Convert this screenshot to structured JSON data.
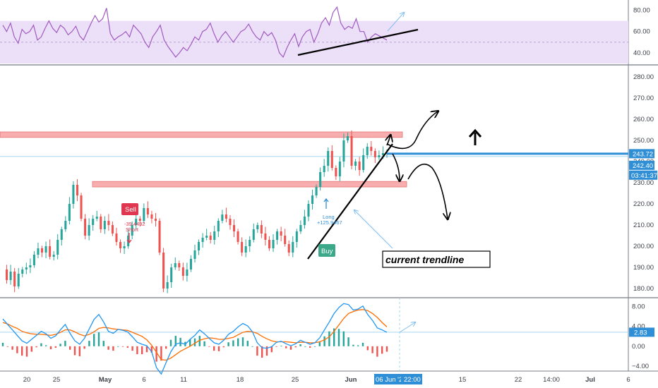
{
  "chart_data": [
    {
      "type": "line",
      "panel": "rsi",
      "ylim": [
        30,
        87
      ],
      "ticks": [
        "80.00",
        "60.00",
        "40.00"
      ],
      "tick_values": [
        80,
        60,
        40
      ],
      "band": [
        30,
        70
      ],
      "midline": 50,
      "colors": {
        "line": "#a05bbf",
        "band": "#ecdff8"
      },
      "values": [
        66,
        60,
        68,
        55,
        49,
        62,
        58,
        60,
        66,
        52,
        55,
        63,
        70,
        63,
        59,
        66,
        63,
        57,
        60,
        65,
        56,
        52,
        60,
        68,
        75,
        69,
        72,
        82,
        58,
        52,
        55,
        57,
        60,
        55,
        66,
        62,
        58,
        50,
        45,
        55,
        60,
        66,
        52,
        46,
        41,
        36,
        40,
        45,
        42,
        48,
        55,
        52,
        60,
        62,
        68,
        58,
        50,
        56,
        60,
        55,
        50,
        55,
        60,
        62,
        67,
        60,
        55,
        52,
        60,
        56,
        59,
        52,
        40,
        36,
        45,
        52,
        58,
        46,
        55,
        60,
        62,
        50,
        58,
        68,
        73,
        66,
        78,
        83,
        68,
        62,
        65,
        63,
        72,
        60,
        60,
        50,
        55,
        58,
        56,
        54,
        52
      ]
    },
    {
      "type": "candlestick",
      "panel": "price",
      "ylim": [
        176,
        285
      ],
      "ticks": [
        "280.00",
        "270.00",
        "260.00",
        "250.00",
        "240.00",
        "230.00",
        "220.00",
        "210.00",
        "200.00",
        "190.00",
        "180.00"
      ],
      "tick_values": [
        280,
        270,
        260,
        250,
        240,
        230,
        220,
        210,
        200,
        190,
        180
      ],
      "x_labels": [
        "20",
        "25",
        "May",
        "6",
        "11",
        "18",
        "25",
        "Jun",
        "06 Jun '20",
        "22:00",
        "15",
        "22",
        "14:00",
        "Jul",
        "6"
      ],
      "closes": [
        189,
        184,
        188,
        181,
        187,
        189,
        190,
        191,
        196,
        199,
        197,
        200,
        195,
        196,
        203,
        208,
        212,
        220,
        229,
        224,
        213,
        205,
        210,
        213,
        214,
        208,
        212,
        210,
        206,
        202,
        199,
        200,
        205,
        210,
        213,
        212,
        218,
        215,
        213,
        212,
        197,
        180,
        183,
        190,
        192,
        190,
        186,
        189,
        194,
        198,
        202,
        204,
        205,
        203,
        207,
        212,
        215,
        213,
        210,
        207,
        202,
        197,
        200,
        203,
        208,
        210,
        206,
        203,
        199,
        203,
        207,
        205,
        201,
        197,
        202,
        207,
        210,
        214,
        220,
        224,
        228,
        235,
        238,
        245,
        237,
        233,
        240,
        250,
        252,
        238,
        240,
        236,
        243,
        247,
        245,
        242,
        243,
        244,
        244
      ],
      "sell": {
        "label": "Sell",
        "pnl": "-39.4492",
        "note": "Short"
      },
      "buy": {
        "label": "Buy",
        "pnl": "+125.9467",
        "note": "Long"
      },
      "last_price": {
        "value": 243.72,
        "label": "243.72"
      },
      "level": {
        "value": 242.4,
        "label": "242.40"
      },
      "countdown": "03:41:37",
      "resistance_zone": [
        251.4,
        254
      ],
      "support_zone": [
        228,
        230.6
      ],
      "annotation": "current trendline",
      "colors": {
        "up": "#26a69a",
        "down": "#ef5350",
        "last": "#2f8fd6",
        "zone": "#f7a5a5"
      }
    },
    {
      "type": "bar",
      "panel": "macd",
      "ylim": [
        -5,
        9.5
      ],
      "ticks": [
        "8.00",
        "4.00",
        "0.00",
        "−4.00"
      ],
      "tick_values": [
        8,
        4,
        0,
        -4
      ],
      "last_value": {
        "value": 2.83,
        "label": "2.83"
      },
      "macd": [
        5.5,
        4.4,
        3.3,
        2.2,
        1.1,
        0.6,
        1.4,
        2.2,
        3.0,
        2.5,
        1.6,
        2.1,
        3.3,
        4.4,
        2.6,
        1.1,
        0.4,
        1.6,
        3.5,
        5.4,
        6.4,
        4.9,
        3.0,
        2.6,
        3.4,
        3.2,
        2.9,
        1.9,
        0.8,
        0.4,
        0.1,
        -1.1,
        -4.3,
        -5.6,
        -3.3,
        -1.1,
        0.4,
        0.7,
        0.4,
        1.4,
        2.2,
        3.3,
        2.5,
        1.6,
        0.7,
        0.4,
        1.2,
        2.4,
        3.0,
        3.9,
        4.6,
        4.1,
        2.9,
        0.7,
        -0.3,
        -0.4,
        -0.1,
        0.8,
        1.0,
        0.5,
        0.1,
        0.5,
        1.2,
        0.8,
        0.4,
        0.7,
        1.7,
        3.3,
        4.9,
        6.6,
        7.8,
        8.6,
        8.4,
        7.3,
        7.5,
        8.1,
        6.4,
        5.2,
        3.7,
        3.3,
        2.8
      ],
      "signal": [
        4.8,
        4.5,
        4.0,
        3.6,
        3.0,
        2.7,
        2.5,
        2.4,
        2.4,
        2.3,
        2.2,
        2.4,
        2.8,
        3.3,
        3.3,
        2.9,
        2.4,
        2.1,
        2.4,
        2.9,
        3.6,
        3.8,
        3.7,
        3.5,
        3.4,
        3.3,
        3.2,
        2.8,
        2.4,
        2.0,
        1.3,
        0.2,
        -1.2,
        -2.7,
        -2.8,
        -2.4,
        -1.7,
        -1.0,
        -0.5,
        0.0,
        0.6,
        1.2,
        1.5,
        1.7,
        1.6,
        1.4,
        1.4,
        1.6,
        1.8,
        2.3,
        2.8,
        3.0,
        2.9,
        2.6,
        2.0,
        1.5,
        1.1,
        0.9,
        0.9,
        0.9,
        0.8,
        0.7,
        0.8,
        0.8,
        0.7,
        0.7,
        0.9,
        1.3,
        1.9,
        3.0,
        4.3,
        5.6,
        6.6,
        7.0,
        7.3,
        7.4,
        7.2,
        6.6,
        5.8,
        4.8,
        3.9
      ],
      "colors": {
        "macd": "#2196f3",
        "signal": "#ff6d00",
        "hist_up": "#26a69a",
        "hist_down": "#ef5350"
      }
    }
  ]
}
